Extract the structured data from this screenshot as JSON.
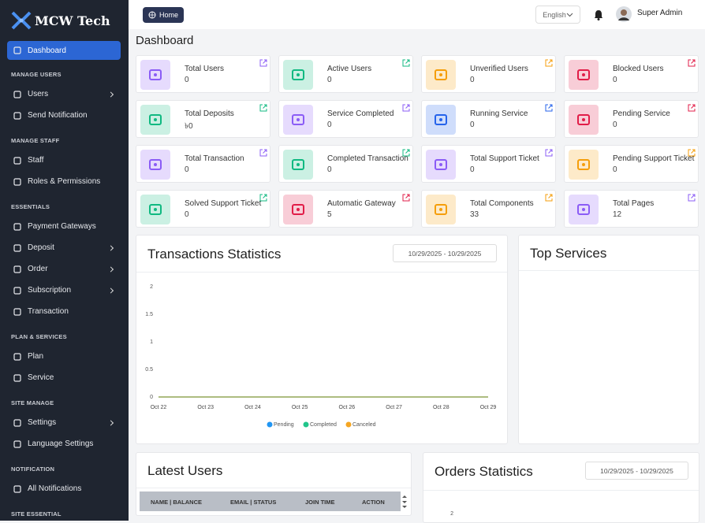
{
  "brand": "MCW Tech",
  "sidebar": [
    {
      "items": [
        {
          "label": "Dashboard",
          "active": true
        }
      ]
    },
    {
      "title": "MANAGE USERS",
      "items": [
        {
          "label": "Users",
          "submenu": true
        },
        {
          "label": "Send Notification"
        }
      ]
    },
    {
      "title": "MANAGE STAFF",
      "items": [
        {
          "label": "Staff"
        },
        {
          "label": "Roles & Permissions"
        }
      ]
    },
    {
      "title": "ESSENTIALS",
      "items": [
        {
          "label": "Payment Gateways"
        },
        {
          "label": "Deposit",
          "submenu": true
        },
        {
          "label": "Order",
          "submenu": true
        },
        {
          "label": "Subscription",
          "submenu": true
        },
        {
          "label": "Transaction"
        }
      ]
    },
    {
      "title": "PLAN & SERVICES",
      "items": [
        {
          "label": "Plan"
        },
        {
          "label": "Service"
        }
      ]
    },
    {
      "title": "SITE MANAGE",
      "items": [
        {
          "label": "Settings",
          "submenu": true
        },
        {
          "label": "Language Settings"
        }
      ]
    },
    {
      "title": "NOTIFICATION",
      "items": [
        {
          "label": "All Notifications"
        }
      ]
    },
    {
      "title": "SITE ESSENTIAL",
      "items": []
    }
  ],
  "topbar": {
    "home": "Home",
    "language": "English",
    "user": "Super Admin"
  },
  "page_title": "Dashboard",
  "cards": [
    {
      "label": "Total Users",
      "value": 0,
      "color": "#8b5cf6"
    },
    {
      "label": "Active Users",
      "value": 0,
      "color": "#10b981"
    },
    {
      "label": "Unverified Users",
      "value": 0,
      "color": "#f59e0b"
    },
    {
      "label": "Blocked Users",
      "value": 0,
      "color": "#e11d48"
    },
    {
      "label": "Total Deposits",
      "value": "৳0",
      "color": "#10b981"
    },
    {
      "label": "Service Completed",
      "value": 0,
      "color": "#8b5cf6"
    },
    {
      "label": "Running Service",
      "value": 0,
      "color": "#2563eb"
    },
    {
      "label": "Pending Service",
      "value": 0,
      "color": "#e11d48"
    },
    {
      "label": "Total Transaction",
      "value": 0,
      "color": "#8b5cf6"
    },
    {
      "label": "Completed Transaction",
      "value": 0,
      "color": "#10b981"
    },
    {
      "label": "Total Support Ticket",
      "value": 0,
      "color": "#8b5cf6"
    },
    {
      "label": "Pending Support Ticket",
      "value": 0,
      "color": "#f59e0b"
    },
    {
      "label": "Solved Support Ticket",
      "value": 0,
      "color": "#10b981"
    },
    {
      "label": "Automatic Gateway",
      "value": 5,
      "color": "#e11d48"
    },
    {
      "label": "Total Components",
      "value": 33,
      "color": "#f59e0b"
    },
    {
      "label": "Total Pages",
      "value": 12,
      "color": "#8b5cf6"
    }
  ],
  "chart_data": {
    "type": "line",
    "title": "Transactions Statistics",
    "date_range": "10/29/2025 - 10/29/2025",
    "categories": [
      "Oct 22",
      "Oct 23",
      "Oct 24",
      "Oct 25",
      "Oct 26",
      "Oct 27",
      "Oct 28",
      "Oct 29"
    ],
    "series": [
      {
        "name": "Pending",
        "color": "#2196f3",
        "values": [
          0,
          0,
          0,
          0,
          0,
          0,
          0,
          0
        ]
      },
      {
        "name": "Completed",
        "color": "#22c58b",
        "values": [
          0,
          0,
          0,
          0,
          0,
          0,
          0,
          0
        ]
      },
      {
        "name": "Canceled",
        "color": "#f5a623",
        "values": [
          0,
          0,
          0,
          0,
          0,
          0,
          0,
          0
        ]
      }
    ],
    "ylim": [
      0,
      2
    ],
    "yticks": [
      0,
      0.5,
      1,
      1.5,
      2
    ],
    "grid": false,
    "legend": "bottom"
  },
  "top_services": {
    "title": "Top Services"
  },
  "latest_users": {
    "title": "Latest Users",
    "columns": [
      "NAME | BALANCE",
      "EMAIL | STATUS",
      "JOIN TIME",
      "ACTION"
    ]
  },
  "orders_statistics": {
    "title": "Orders Statistics",
    "date_range": "10/29/2025 - 10/29/2025",
    "yticks": [
      2
    ]
  }
}
